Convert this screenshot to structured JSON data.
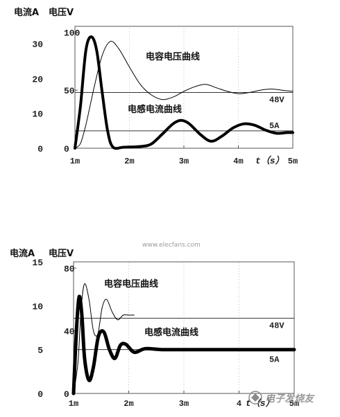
{
  "chart_data": [
    {
      "type": "line",
      "ylabel_left": "电流A",
      "ylabel_right": "电压V",
      "y_current_ticks": [
        "0",
        "10",
        "20",
        "30"
      ],
      "y_current_range": [
        0,
        35
      ],
      "y_voltage_ticks": [
        "0",
        "50",
        "100"
      ],
      "y_voltage_range": [
        0,
        105
      ],
      "x_ticks": [
        "1m",
        "2m",
        "3m",
        "4m",
        "5m"
      ],
      "x_range_ms": [
        1,
        5
      ],
      "xlabel": "t（s）",
      "ref_lines": [
        {
          "label": "48V",
          "value": 48,
          "axis": "voltage"
        },
        {
          "label": "5A",
          "value": 5,
          "axis": "current"
        }
      ],
      "series": [
        {
          "name": "电容电压曲线",
          "axis": "voltage",
          "x": [
            1.0,
            1.1,
            1.2,
            1.35,
            1.5,
            1.65,
            1.8,
            2.0,
            2.2,
            2.4,
            2.6,
            2.8,
            3.0,
            3.2,
            3.4,
            3.6,
            3.8,
            4.0,
            4.2,
            4.4,
            4.6,
            4.8,
            5.0
          ],
          "y": [
            0,
            4,
            20,
            52,
            80,
            92,
            86,
            70,
            55,
            46,
            42,
            44,
            49,
            53,
            55,
            52,
            49,
            47,
            48,
            50,
            51,
            50,
            49
          ]
        },
        {
          "name": "电感电流曲线",
          "axis": "current",
          "x": [
            1.0,
            1.1,
            1.2,
            1.3,
            1.4,
            1.5,
            1.6,
            1.7,
            1.9,
            2.2,
            2.4,
            2.6,
            2.8,
            2.95,
            3.1,
            3.3,
            3.5,
            3.7,
            3.9,
            4.1,
            4.3,
            4.5,
            4.7,
            4.9,
            5.0
          ],
          "y": [
            0,
            12,
            28,
            32,
            28,
            16,
            5,
            0.3,
            0.3,
            0.5,
            1.2,
            4,
            7,
            8,
            7,
            4,
            2,
            3.5,
            5.8,
            7,
            6.6,
            5.2,
            4.3,
            4.5,
            4.5
          ]
        }
      ]
    },
    {
      "type": "line",
      "ylabel_left": "电流A",
      "ylabel_right": "电压V",
      "y_current_ticks": [
        "0",
        "5",
        "10",
        "15"
      ],
      "y_current_range": [
        0,
        15
      ],
      "y_voltage_ticks": [
        "0",
        "40",
        "80"
      ],
      "y_voltage_range": [
        0,
        84
      ],
      "x_ticks": [
        "1m",
        "2m",
        "3m",
        "4",
        "5m"
      ],
      "x_range_ms": [
        1,
        5
      ],
      "xlabel": "t（s）",
      "ref_lines": [
        {
          "label": "48V",
          "value": 48,
          "axis": "voltage"
        },
        {
          "label": "5A",
          "value": 5,
          "axis": "current"
        }
      ],
      "series": [
        {
          "name": "电容电压曲线",
          "axis": "voltage",
          "x": [
            1.0,
            1.08,
            1.14,
            1.2,
            1.28,
            1.36,
            1.44,
            1.52,
            1.6,
            1.7,
            1.8,
            1.9,
            2.0,
            2.1
          ],
          "y": [
            0,
            20,
            55,
            70,
            60,
            40,
            38,
            55,
            60,
            52,
            47,
            50,
            50,
            50
          ]
        },
        {
          "name": "电感电流曲线",
          "axis": "current",
          "x": [
            1.0,
            1.05,
            1.1,
            1.15,
            1.2,
            1.28,
            1.36,
            1.45,
            1.55,
            1.65,
            1.75,
            1.85,
            1.95,
            2.1,
            2.3,
            2.6,
            3.0,
            3.5,
            4.0,
            4.5,
            5.0
          ],
          "y": [
            0,
            7,
            11,
            9,
            4,
            1.5,
            3,
            6.5,
            7,
            5,
            4,
            5.5,
            5.6,
            4.7,
            5.1,
            5.0,
            5.0,
            5.0,
            5.0,
            5.0,
            5.0
          ]
        }
      ]
    }
  ],
  "watermark": "www.elecfans.com",
  "logo_text": "电子发烧友"
}
